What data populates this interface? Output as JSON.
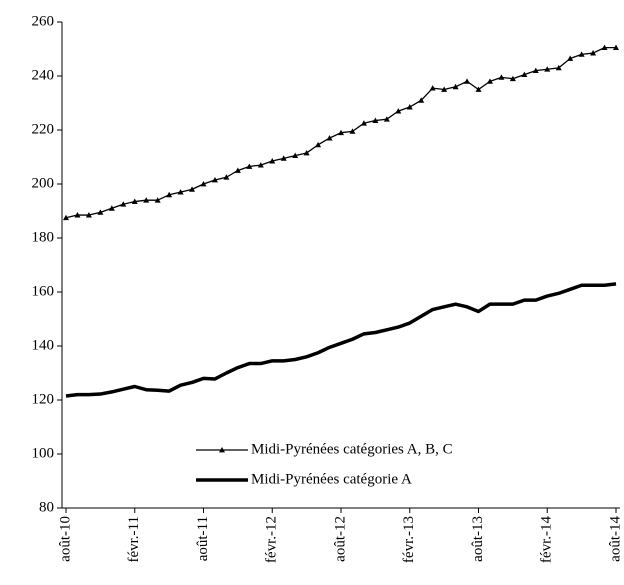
{
  "chart_data": {
    "type": "line",
    "categories": [
      "août-10",
      null,
      null,
      null,
      null,
      null,
      "févr.-11",
      null,
      null,
      null,
      null,
      null,
      "août-11",
      null,
      null,
      null,
      null,
      null,
      "févr.-12",
      null,
      null,
      null,
      null,
      null,
      "août-12",
      null,
      null,
      null,
      null,
      null,
      "févr.-13",
      null,
      null,
      null,
      null,
      null,
      "août-13",
      null,
      null,
      null,
      null,
      null,
      "févr.-14",
      null,
      null,
      null,
      null,
      null,
      "août-14"
    ],
    "series": [
      {
        "name": "Midi-Pyrénées catégories A, B, C",
        "color": "#000000",
        "linewidth": 1.3,
        "marker": "triangle",
        "values": [
          187.5,
          188.5,
          188.5,
          189.5,
          191,
          192.5,
          193.5,
          194,
          194,
          196,
          197,
          198,
          200,
          201.5,
          202.5,
          205,
          206.5,
          207,
          208.5,
          209.5,
          210.5,
          211.5,
          214.5,
          217,
          219,
          219.5,
          222.5,
          223.5,
          224,
          227,
          228.5,
          231,
          235.5,
          235,
          236,
          238,
          235,
          238,
          239.5,
          239,
          240.5,
          242,
          242.5,
          243,
          246.5,
          248,
          248.5,
          250.5,
          250.5
        ]
      },
      {
        "name": "Midi-Pyrénées catégorie A",
        "color": "#000000",
        "linewidth": 3.5,
        "values": [
          121.5,
          122,
          122,
          122.2,
          123,
          124,
          125,
          123.8,
          123.6,
          123.3,
          125.5,
          126.5,
          128,
          127.8,
          130,
          132,
          133.5,
          133.5,
          134.5,
          134.5,
          135,
          136,
          137.5,
          139.5,
          141,
          142.5,
          144.5,
          145,
          146,
          147,
          148.5,
          151,
          153.5,
          154.5,
          155.5,
          154.5,
          152.8,
          155.5,
          155.5,
          155.5,
          157,
          157,
          158.5,
          159.5,
          161,
          162.5,
          162.5,
          162.5,
          163
        ]
      }
    ],
    "ylim": [
      80,
      260
    ],
    "yticks": [
      80,
      100,
      120,
      140,
      160,
      180,
      200,
      220,
      240,
      260
    ],
    "legend": "lower center"
  }
}
